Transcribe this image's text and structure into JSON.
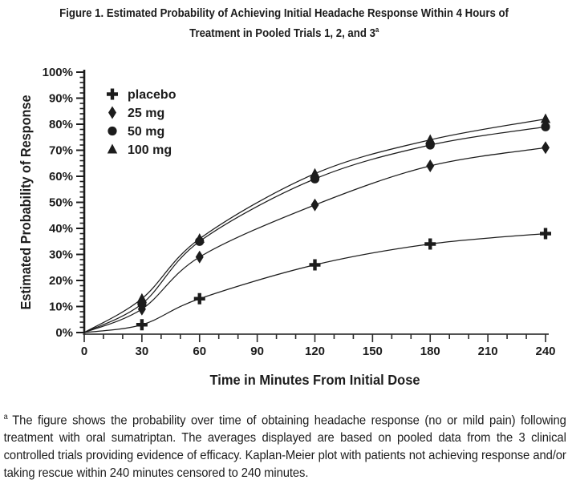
{
  "title": {
    "line1": "Figure 1. Estimated Probability of Achieving Initial Headache Response Within 4 Hours of",
    "line2": "Treatment in Pooled Trials 1, 2, and 3",
    "footnote_marker": "a"
  },
  "chart_data": {
    "type": "line",
    "x": [
      0,
      30,
      60,
      120,
      180,
      240
    ],
    "series": [
      {
        "name": "placebo",
        "marker": "plus",
        "values": [
          0,
          3,
          13,
          26,
          34,
          38
        ]
      },
      {
        "name": "25 mg",
        "marker": "diamond",
        "values": [
          0,
          9,
          29,
          49,
          64,
          71
        ]
      },
      {
        "name": "50 mg",
        "marker": "circle",
        "values": [
          0,
          11,
          35,
          59,
          72,
          79
        ]
      },
      {
        "name": "100 mg",
        "marker": "triangle",
        "values": [
          0,
          13,
          36,
          61,
          74,
          82
        ]
      }
    ],
    "legend": [
      "placebo",
      "25 mg",
      "50 mg",
      "100 mg"
    ],
    "legend_position": "upper-left",
    "xlabel": "Time in Minutes From Initial Dose",
    "ylabel": "Estimated Probability of Response",
    "xlim": [
      0,
      240
    ],
    "ylim": [
      0,
      100
    ],
    "x_major_tick_step": 30,
    "x_minor_tick_step": 10,
    "y_major_tick_step": 10,
    "y_minor_tick_step": 2,
    "y_tick_suffix": "%",
    "grid": false,
    "color": "#1c1c1c"
  },
  "footnote": {
    "marker": "a",
    "text": "The figure shows the probability over time of obtaining headache response (no or mild pain) following treatment with oral sumatriptan. The averages displayed are based on pooled data from the 3 clinical controlled trials providing evidence of efficacy. Kaplan-Meier plot with patients not achieving response and/or taking rescue within 240 minutes censored to 240 minutes."
  }
}
